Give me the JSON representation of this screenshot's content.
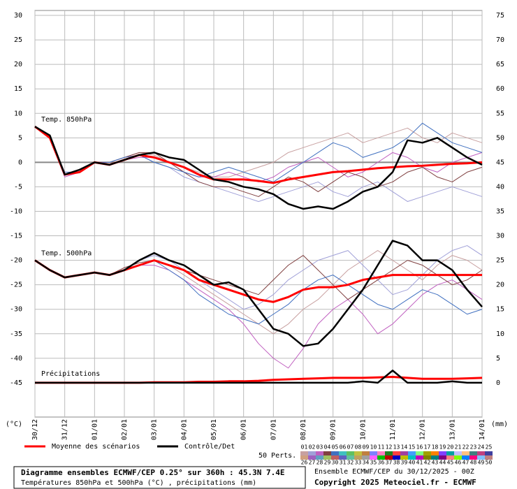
{
  "chart_data": {
    "type": "line",
    "y_axis_label": "(°C)",
    "y2_axis_label": "(mm)",
    "x": [
      0,
      12,
      24,
      36,
      48,
      60,
      72,
      84,
      96,
      108,
      120,
      132,
      144,
      156,
      168,
      180,
      192,
      204,
      216,
      228,
      240,
      252,
      264,
      276,
      288,
      300,
      312,
      324,
      336,
      348,
      360
    ],
    "xlim": [
      0,
      360
    ],
    "xticks": [
      {
        "value": 0,
        "label": "30/12"
      },
      {
        "value": 24,
        "label": "31/12"
      },
      {
        "value": 48,
        "label": "01/01"
      },
      {
        "value": 72,
        "label": "02/01"
      },
      {
        "value": 96,
        "label": "03/01"
      },
      {
        "value": 120,
        "label": "04/01"
      },
      {
        "value": 144,
        "label": "05/01"
      },
      {
        "value": 168,
        "label": "06/01"
      },
      {
        "value": 192,
        "label": "07/01"
      },
      {
        "value": 216,
        "label": "08/01"
      },
      {
        "value": 240,
        "label": "09/01"
      },
      {
        "value": 264,
        "label": "10/01"
      },
      {
        "value": 288,
        "label": "11/01"
      },
      {
        "value": 312,
        "label": "12/01"
      },
      {
        "value": 336,
        "label": "13/01"
      },
      {
        "value": 360,
        "label": "14/01"
      }
    ],
    "ylim": [
      -52,
      31
    ],
    "yticks": [
      -45,
      -40,
      -35,
      -30,
      -25,
      -20,
      -15,
      -10,
      -5,
      0,
      5,
      10,
      15,
      20,
      25,
      30
    ],
    "y2lim": [
      -7,
      76
    ],
    "y2ticks": [
      0,
      5,
      10,
      15,
      20,
      25,
      30,
      35,
      40,
      45,
      50,
      55,
      60,
      65,
      70,
      75
    ],
    "grid": true,
    "mean_color": "#ff0000",
    "control_color": "#000000",
    "legend": [
      {
        "name": "Moyenne des scénarios",
        "color": "#ff0000"
      },
      {
        "name": "Contrôle/Det",
        "color": "#000000"
      }
    ],
    "members_title": "50 Perts.",
    "members": [
      {
        "label": "01",
        "color": "#c8a0a0"
      },
      {
        "label": "02",
        "color": "#a0a0d8"
      },
      {
        "label": "03",
        "color": "#c060c0"
      },
      {
        "label": "04",
        "color": "#804040"
      },
      {
        "label": "05",
        "color": "#4070c0"
      },
      {
        "label": "06",
        "color": "#40c0c0"
      },
      {
        "label": "07",
        "color": "#60c060"
      },
      {
        "label": "08",
        "color": "#c0c040"
      },
      {
        "label": "09",
        "color": "#c08040"
      },
      {
        "label": "10",
        "color": "#8080ff"
      },
      {
        "label": "11",
        "color": "#ff80c0"
      },
      {
        "label": "12",
        "color": "#208020"
      },
      {
        "label": "13",
        "color": "#ff4040"
      },
      {
        "label": "14",
        "color": "#a040a0"
      },
      {
        "label": "15",
        "color": "#40a0ff"
      },
      {
        "label": "16",
        "color": "#80ff80"
      },
      {
        "label": "17",
        "color": "#a0a000"
      },
      {
        "label": "18",
        "color": "#ff8000"
      },
      {
        "label": "19",
        "color": "#8040ff"
      },
      {
        "label": "20",
        "color": "#00a0a0"
      },
      {
        "label": "21",
        "color": "#c0c0ff"
      },
      {
        "label": "22",
        "color": "#ffc080"
      },
      {
        "label": "23",
        "color": "#408080"
      },
      {
        "label": "24",
        "color": "#c04080"
      },
      {
        "label": "25",
        "color": "#4040a0"
      },
      {
        "label": "26",
        "color": "#d0a080"
      },
      {
        "label": "27",
        "color": "#a060c0"
      },
      {
        "label": "28",
        "color": "#60a0c0"
      },
      {
        "label": "29",
        "color": "#a0c060"
      },
      {
        "label": "30",
        "color": "#c06060"
      },
      {
        "label": "31",
        "color": "#6060c0"
      },
      {
        "label": "32",
        "color": "#60c0a0"
      },
      {
        "label": "33",
        "color": "#c0a060"
      },
      {
        "label": "34",
        "color": "#a0a0a0"
      },
      {
        "label": "35",
        "color": "#ff60ff"
      },
      {
        "label": "36",
        "color": "#00c000"
      },
      {
        "label": "37",
        "color": "#c00000"
      },
      {
        "label": "38",
        "color": "#0000c0"
      },
      {
        "label": "39",
        "color": "#c0c000"
      },
      {
        "label": "40",
        "color": "#00c0c0"
      },
      {
        "label": "41",
        "color": "#c000c0"
      },
      {
        "label": "42",
        "color": "#808000"
      },
      {
        "label": "43",
        "color": "#008080"
      },
      {
        "label": "44",
        "color": "#800080"
      },
      {
        "label": "45",
        "color": "#ff8080"
      },
      {
        "label": "46",
        "color": "#80ff00"
      },
      {
        "label": "47",
        "color": "#0080ff"
      },
      {
        "label": "48",
        "color": "#ff0080"
      },
      {
        "label": "49",
        "color": "#80c0ff"
      },
      {
        "label": "50",
        "color": "#c08080"
      }
    ],
    "panels": [
      {
        "label": "Temp. 850hPa",
        "axis": "y",
        "mean": [
          7.3,
          5,
          -2.5,
          -2,
          0,
          -0.5,
          0.5,
          1.5,
          1,
          0,
          -1,
          -2.5,
          -3.5,
          -3.5,
          -3.5,
          -3.8,
          -4.2,
          -3.5,
          -3,
          -2.5,
          -2,
          -1.8,
          -1.5,
          -1.2,
          -1,
          -0.8,
          -0.7,
          -0.5,
          -0.3,
          -0.2,
          0
        ],
        "control": [
          7.3,
          5.5,
          -2.5,
          -1.5,
          0,
          -0.5,
          0.5,
          1.5,
          2,
          1,
          0.5,
          -1.5,
          -3.5,
          -4,
          -5,
          -5.5,
          -6.5,
          -8.5,
          -9.5,
          -9,
          -9.5,
          -8,
          -6,
          -5,
          -2,
          4.5,
          4,
          5,
          3,
          1,
          -0.5
        ],
        "members": [
          [
            7.3,
            5,
            -2.5,
            -2,
            0,
            0,
            1,
            2,
            1.5,
            0,
            -1,
            -2,
            -3,
            -3,
            -2,
            -1,
            0,
            2,
            3,
            4,
            5,
            6,
            4,
            5,
            6,
            7,
            5,
            4,
            6,
            5,
            4
          ],
          [
            7.3,
            5,
            -2.5,
            -2,
            0,
            -0.5,
            0.5,
            1.5,
            0,
            -1,
            -3,
            -4,
            -5,
            -6,
            -7,
            -8,
            -7,
            -6,
            -5,
            -4,
            -6,
            -7,
            -5,
            -4,
            -6,
            -8,
            -7,
            -6,
            -5,
            -6,
            -7
          ],
          [
            7.3,
            5,
            -3,
            -2,
            0,
            -0.5,
            0.5,
            1,
            1,
            0,
            -2,
            -3,
            -3,
            -2,
            -3,
            -4,
            -3,
            -1,
            0,
            1,
            -1,
            -3,
            -2,
            0,
            2,
            1,
            -1,
            -2,
            0,
            1,
            2
          ],
          [
            7.3,
            5,
            -2.5,
            -1.5,
            0,
            0,
            1,
            2,
            2,
            0,
            -2,
            -4,
            -5,
            -5,
            -6,
            -7,
            -5,
            -3,
            -4,
            -6,
            -4,
            -2,
            -3,
            -5,
            -4,
            -2,
            -1,
            -3,
            -4,
            -2,
            -1
          ],
          [
            7.3,
            5,
            -2,
            -2,
            0,
            0,
            1,
            1.5,
            0,
            -1,
            -2,
            -3,
            -2,
            -1,
            -2,
            -3,
            -4,
            -2,
            0,
            2,
            4,
            3,
            1,
            2,
            3,
            5,
            8,
            6,
            4,
            3,
            2
          ]
        ]
      },
      {
        "label": "Temp. 500hPa",
        "axis": "y",
        "mean": [
          -20,
          -22,
          -23.5,
          -23,
          -22.5,
          -23,
          -22,
          -21,
          -20,
          -21,
          -22,
          -24,
          -25,
          -26,
          -27,
          -28,
          -28.5,
          -27.5,
          -26,
          -25.5,
          -25.5,
          -25,
          -24,
          -23.5,
          -23,
          -23,
          -23,
          -23,
          -23,
          -23,
          -23
        ],
        "control": [
          -20,
          -22,
          -23.5,
          -23,
          -22.5,
          -23,
          -22,
          -20,
          -18.5,
          -20,
          -21,
          -23,
          -25,
          -24.5,
          -26,
          -30,
          -34,
          -35,
          -37.5,
          -37,
          -34,
          -30,
          -26,
          -21,
          -16,
          -17,
          -20,
          -20,
          -22,
          -26,
          -29.5
        ],
        "members": [
          [
            -20,
            -22,
            -23.5,
            -23,
            -22.5,
            -23,
            -22,
            -21,
            -20,
            -21,
            -23,
            -25,
            -27,
            -29,
            -31,
            -33,
            -35,
            -33,
            -30,
            -28,
            -25,
            -22,
            -20,
            -18,
            -20,
            -22,
            -24,
            -21,
            -19,
            -20,
            -22
          ],
          [
            -20,
            -22,
            -23.5,
            -23,
            -22.5,
            -23,
            -22,
            -20,
            -19,
            -20,
            -22,
            -24,
            -26,
            -28,
            -30,
            -29,
            -27,
            -24,
            -22,
            -20,
            -19,
            -18,
            -21,
            -24,
            -27,
            -26,
            -23,
            -20,
            -18,
            -17,
            -19
          ],
          [
            -20,
            -22,
            -23.5,
            -23,
            -22.5,
            -23,
            -22,
            -21,
            -21,
            -22,
            -24,
            -26,
            -28,
            -30,
            -33,
            -37,
            -40,
            -42,
            -38,
            -33,
            -30,
            -28,
            -31,
            -35,
            -33,
            -30,
            -27,
            -25,
            -24,
            -26,
            -28
          ],
          [
            -20,
            -22,
            -23.5,
            -23,
            -22.5,
            -23,
            -21.5,
            -20.5,
            -20,
            -21,
            -22,
            -23,
            -24,
            -25,
            -26,
            -27,
            -24,
            -21,
            -19,
            -22,
            -25,
            -28,
            -26,
            -24,
            -22,
            -20,
            -21,
            -23,
            -25,
            -24,
            -22
          ],
          [
            -20,
            -22,
            -23.5,
            -23,
            -22.5,
            -23,
            -22,
            -21,
            -20,
            -22,
            -24,
            -27,
            -29,
            -31,
            -32,
            -33,
            -31,
            -29,
            -26,
            -24,
            -23,
            -25,
            -27,
            -29,
            -30,
            -28,
            -26,
            -27,
            -29,
            -31,
            -30
          ]
        ]
      },
      {
        "label": "Précipitations",
        "axis": "y2",
        "mean": [
          0,
          0,
          0,
          0,
          0,
          0,
          0,
          0,
          0.1,
          0.1,
          0.1,
          0.2,
          0.2,
          0.3,
          0.3,
          0.4,
          0.6,
          0.7,
          0.8,
          0.9,
          1,
          1,
          1,
          1.1,
          1.2,
          1,
          0.8,
          0.8,
          0.8,
          0.9,
          1
        ],
        "control": [
          0,
          0,
          0,
          0,
          0,
          0,
          0,
          0,
          0,
          0,
          0,
          0,
          0,
          0,
          0,
          0,
          0,
          0,
          0,
          0,
          0,
          0,
          0.3,
          0,
          2.5,
          0,
          0,
          0,
          0.3,
          0,
          0
        ]
      }
    ],
    "footer_title": "Diagramme ensembles ECMWF/CEP 0.25° sur 360h : 45.3N 7.4E",
    "footer_subtitle": "Températures 850hPa et 500hPa (°C) , précipitations (mm)",
    "run_info": "Ensemble ECMWF/CEP du 30/12/2025 - 00Z",
    "copyright": "Copyright 2025 Meteociel.fr - ECMWF"
  }
}
